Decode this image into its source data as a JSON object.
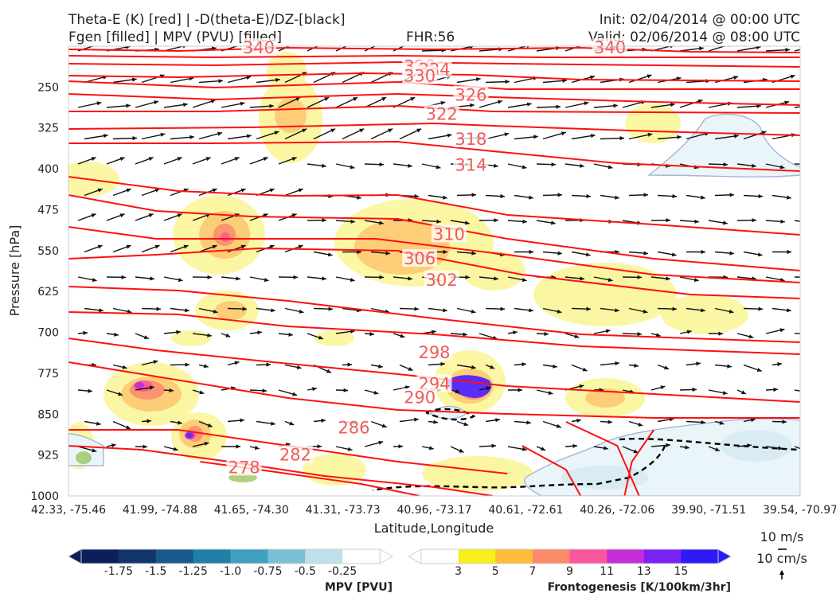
{
  "header": {
    "left_line1": "Theta-E (K) [red] | -D(theta-E)/DZ-[black]",
    "left_line2": "Fgen [filled] | MPV (PVU) [filled]",
    "center": "FHR:56",
    "right_line1": "Init: 02/04/2014 @ 00:00 UTC",
    "right_line2": "Valid: 02/06/2014 @ 08:00 UTC"
  },
  "chart_data": {
    "type": "cross-section",
    "xlabel": "Latitude,Longitude",
    "ylabel": "Pressure [hPa]",
    "x_ticks": [
      "42.33, -75.46",
      "41.99, -74.88",
      "41.65, -74.30",
      "41.31, -73.73",
      "40.96, -73.17",
      "40.61, -72.61",
      "40.26, -72.06",
      "39.90, -71.51",
      "39.54, -70.97"
    ],
    "y_ticks": [
      250,
      325,
      400,
      475,
      550,
      625,
      700,
      775,
      850,
      925,
      1000
    ],
    "ylim": [
      175,
      1000
    ],
    "y_inverted": true,
    "theta_e_contour_labels": [
      {
        "value": "340",
        "x": 0.26,
        "p": 178
      },
      {
        "value": "338",
        "x": 0.48,
        "p": 212
      },
      {
        "value": "334",
        "x": 0.5,
        "p": 218
      },
      {
        "value": "330",
        "x": 0.48,
        "p": 230
      },
      {
        "value": "326",
        "x": 0.55,
        "p": 265
      },
      {
        "value": "322",
        "x": 0.51,
        "p": 300
      },
      {
        "value": "318",
        "x": 0.55,
        "p": 346
      },
      {
        "value": "314",
        "x": 0.55,
        "p": 393
      },
      {
        "value": "310",
        "x": 0.52,
        "p": 520
      },
      {
        "value": "306",
        "x": 0.48,
        "p": 565
      },
      {
        "value": "302",
        "x": 0.51,
        "p": 604
      },
      {
        "value": "298",
        "x": 0.5,
        "p": 737
      },
      {
        "value": "294",
        "x": 0.5,
        "p": 795
      },
      {
        "value": "290",
        "x": 0.48,
        "p": 820
      },
      {
        "value": "286",
        "x": 0.39,
        "p": 875
      },
      {
        "value": "282",
        "x": 0.31,
        "p": 925
      },
      {
        "value": "278",
        "x": 0.24,
        "p": 948
      },
      {
        "value": "340",
        "x": 0.74,
        "p": 178
      }
    ],
    "colorbars": [
      {
        "name": "MPV [PVU]",
        "ticks": [
          "-1.75",
          "-1.5",
          "-1.25",
          "-1.0",
          "-0.75",
          "-0.5",
          "-0.25"
        ],
        "colors": [
          "#0a1f5c",
          "#12356e",
          "#1a5a8a",
          "#1f7fa6",
          "#3fa0c2",
          "#7bbfd6",
          "#bfe0ea",
          "#ffffff"
        ]
      },
      {
        "name": "Frontogenesis [K/100km/3hr]",
        "ticks": [
          "3",
          "5",
          "7",
          "9",
          "11",
          "13",
          "15"
        ],
        "colors": [
          "#ffffff",
          "#f8ef1a",
          "#fdbd3c",
          "#fb8a6a",
          "#f9569e",
          "#c42ed8",
          "#7b22f5",
          "#2c1af7"
        ]
      }
    ],
    "wind_reference": {
      "top": "10 m/s",
      "bottom": "10 cm/s"
    }
  }
}
